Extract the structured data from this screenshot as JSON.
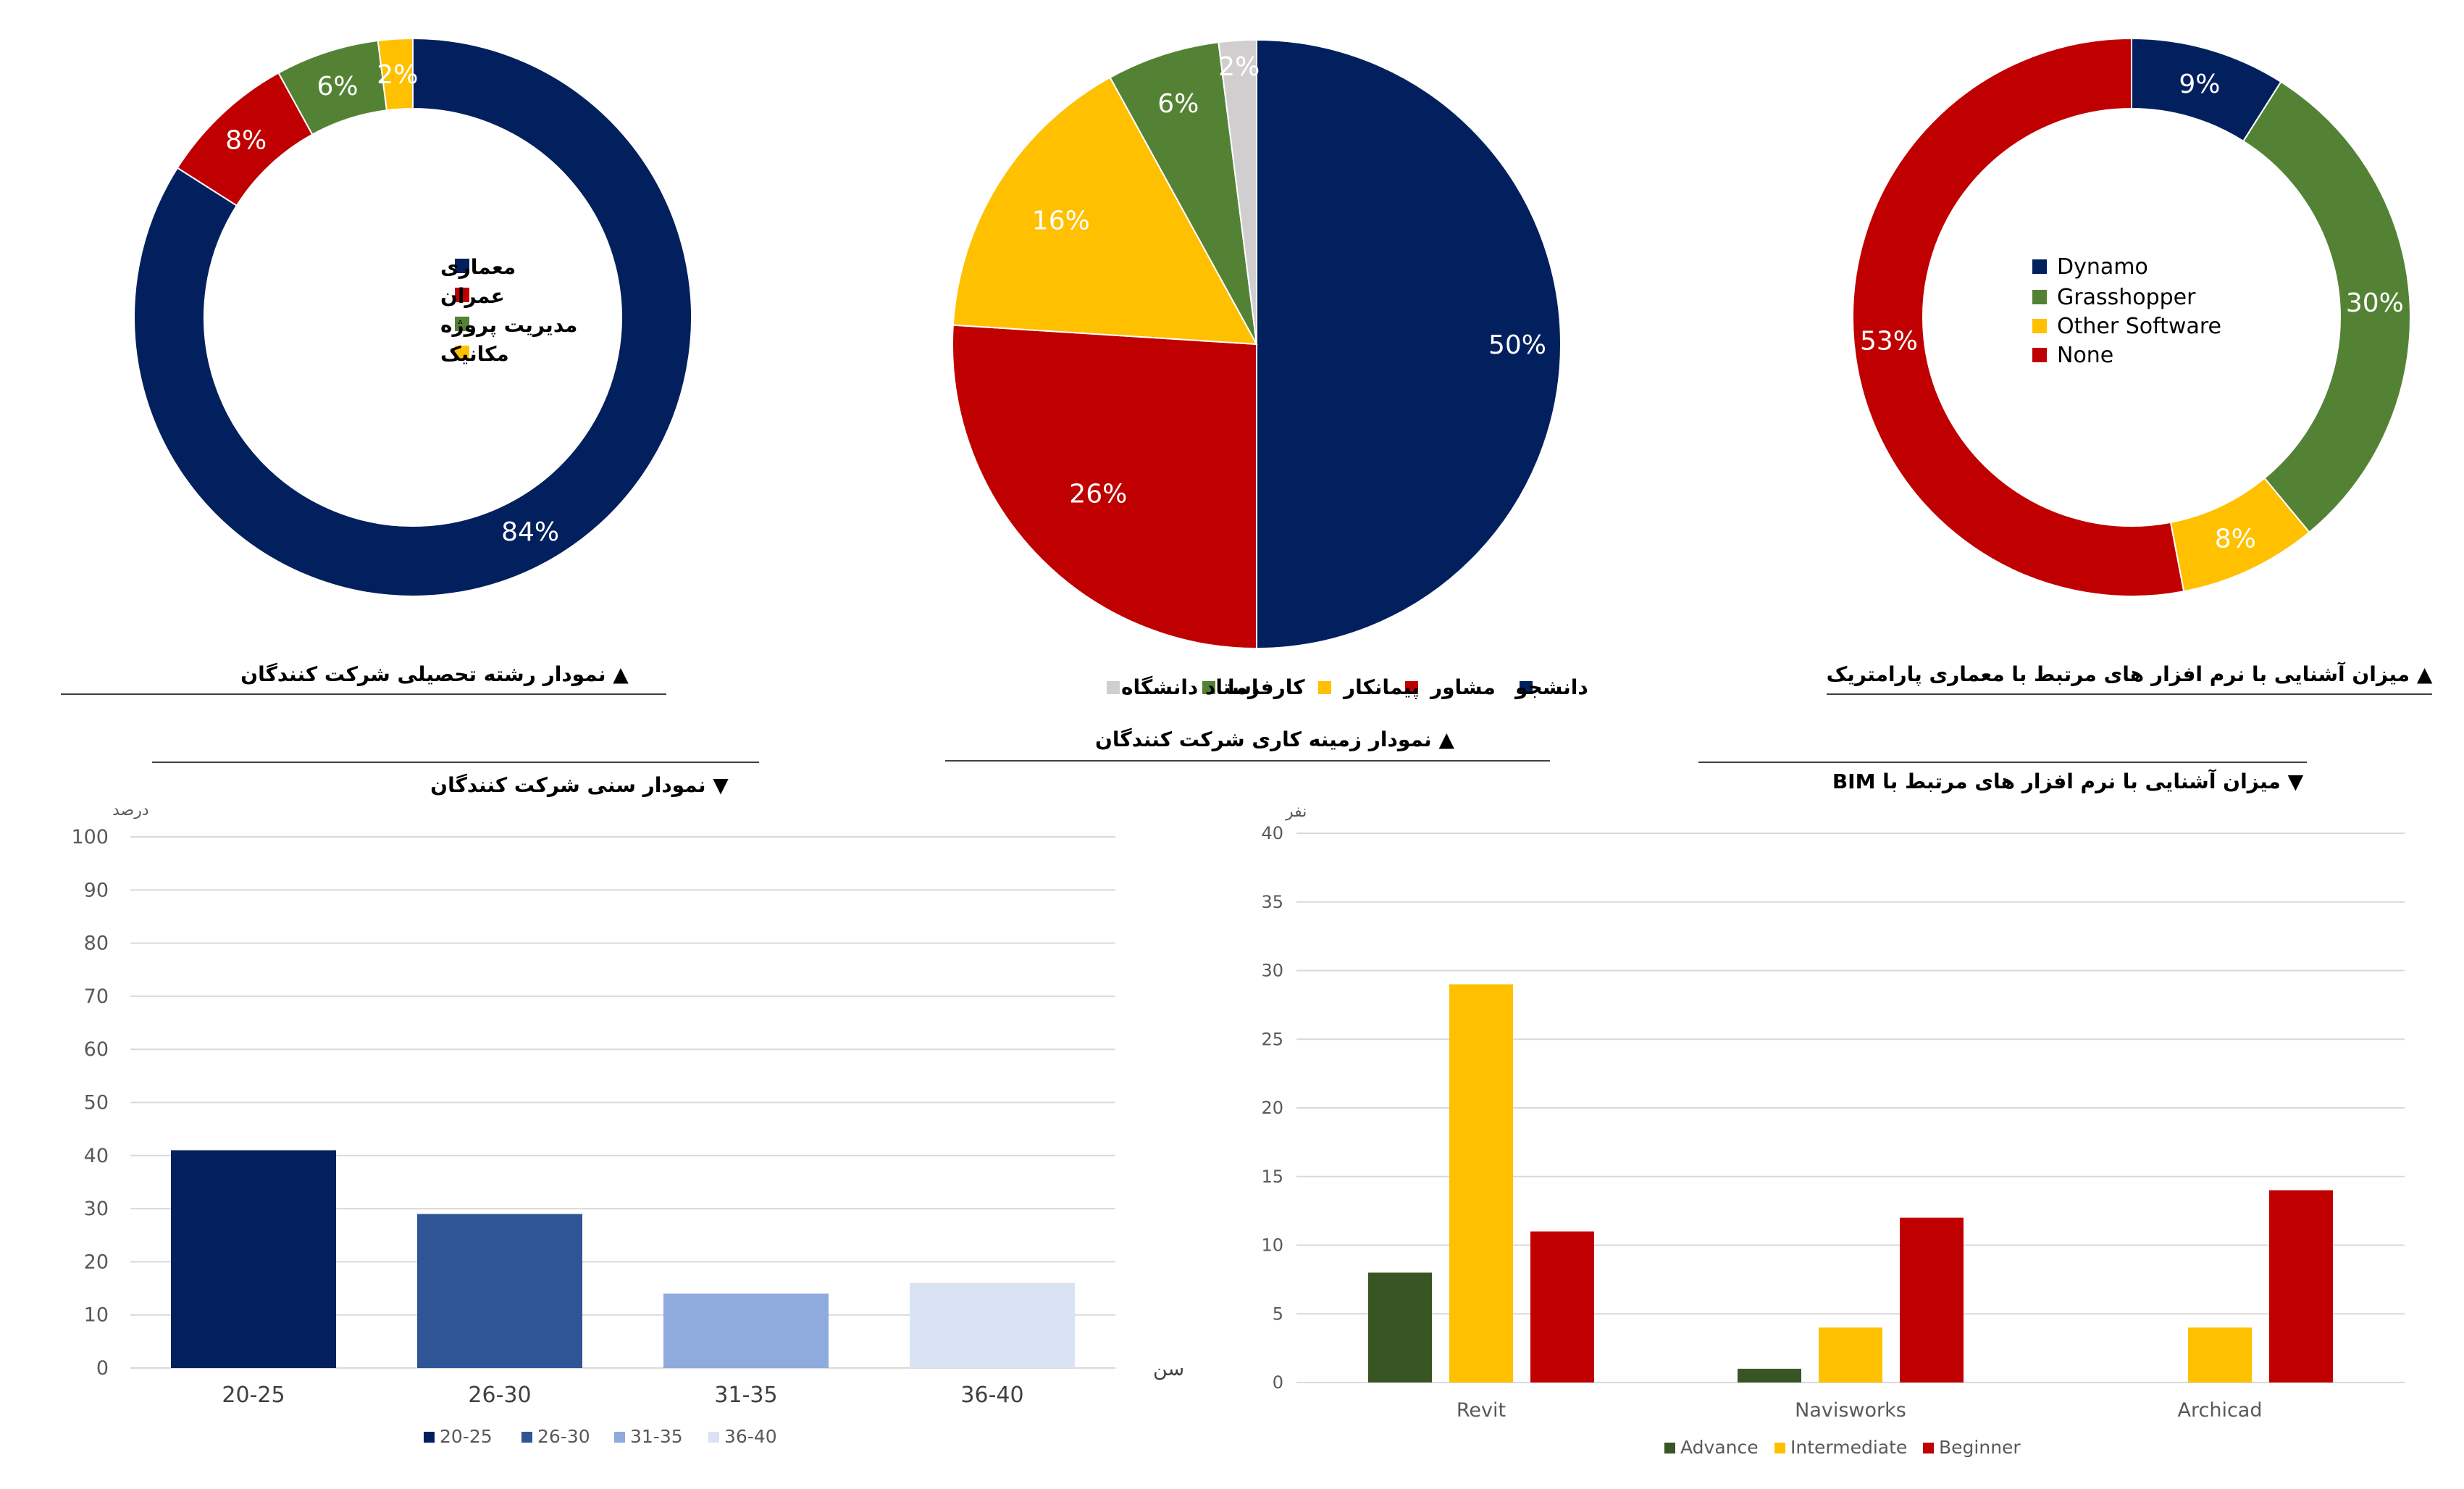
{
  "colors": {
    "navy": "#03205E",
    "red": "#C00000",
    "green": "#548235",
    "yellow": "#FFC000",
    "gray": "#D0CECE",
    "age1": "#03205E",
    "age2": "#2F5597",
    "age3": "#8FAADC",
    "age4": "#DAE3F3",
    "advance": "#375623",
    "intermediate": "#FFC000",
    "beginner": "#C00000",
    "grid": "#D9D9D9",
    "axis_text": "#595959"
  },
  "chart_data": [
    {
      "id": "field-of-study",
      "type": "pie",
      "donut": true,
      "title": "نمودار رشته تحصیلی شرکت کنندگان",
      "title_marker": "▲",
      "legend_position": "center",
      "slices": [
        {
          "label": "معماری",
          "value": 84,
          "display": "84%",
          "color": "#03205E"
        },
        {
          "label": "عمران",
          "value": 8,
          "display": "8%",
          "color": "#C00000"
        },
        {
          "label": "مدیریت پروژه",
          "value": 6,
          "display": "6%",
          "color": "#548235"
        },
        {
          "label": "مکانیک",
          "value": 2,
          "display": "2%",
          "color": "#FFC000"
        }
      ]
    },
    {
      "id": "work-field",
      "type": "pie",
      "donut": false,
      "title": "نمودار زمینه کاری شرکت کنندگان",
      "title_marker": "▲",
      "legend_position": "bottom",
      "slices": [
        {
          "label": "دانشجو",
          "value": 50,
          "display": "50%",
          "color": "#03205E"
        },
        {
          "label": "مشاور",
          "value": 26,
          "display": "26%",
          "color": "#C00000"
        },
        {
          "label": "پیمانکار",
          "value": 16,
          "display": "16%",
          "color": "#FFC000"
        },
        {
          "label": "کارفرما",
          "value": 6,
          "display": "6%",
          "color": "#548235"
        },
        {
          "label": "استاد دانشگاه",
          "value": 2,
          "display": "2%",
          "color": "#D0CECE"
        }
      ]
    },
    {
      "id": "parametric-software",
      "type": "pie",
      "donut": true,
      "title": "میزان آشنایی با نرم افزار های مرتبط با معماری پارامتریک",
      "title_marker": "▲",
      "legend_position": "center",
      "slices": [
        {
          "label": "Dynamo",
          "value": 9,
          "display": "9%",
          "color": "#03205E"
        },
        {
          "label": "Grasshopper",
          "value": 30,
          "display": "30%",
          "color": "#548235"
        },
        {
          "label": "Other Software",
          "value": 8,
          "display": "8%",
          "color": "#FFC000"
        },
        {
          "label": "None",
          "value": 53,
          "display": "53%",
          "color": "#C00000"
        }
      ]
    },
    {
      "id": "age-distribution",
      "type": "bar",
      "title": "نمودار سنی شرکت کنندگان",
      "title_marker": "▼",
      "ylabel": "درصد",
      "xlabel": "سن",
      "ylim": [
        0,
        100
      ],
      "ytick_step": 10,
      "yticks": [
        "0",
        "10",
        "20",
        "30",
        "40",
        "50",
        "60",
        "70",
        "80",
        "90",
        "100"
      ],
      "categories": [
        "20-25",
        "26-30",
        "31-35",
        "36-40"
      ],
      "values": [
        41,
        29,
        14,
        16
      ],
      "bar_colors": [
        "#03205E",
        "#2F5597",
        "#8FAADC",
        "#DAE3F3"
      ],
      "legend": [
        "20-25",
        "26-30",
        "31-35",
        "36-40"
      ],
      "legend_position": "bottom"
    },
    {
      "id": "bim-software",
      "type": "bar",
      "title": "میزان آشنایی با نرم افزار های مرتبط با BIM",
      "title_marker": "▼",
      "ylabel": "نفر",
      "xlabel": "",
      "ylim": [
        0,
        40
      ],
      "ytick_step": 5,
      "yticks": [
        "0",
        "5",
        "10",
        "15",
        "20",
        "25",
        "30",
        "35",
        "40"
      ],
      "categories": [
        "Revit",
        "Navisworks",
        "Archicad"
      ],
      "series": [
        {
          "name": "Advance",
          "values": [
            8,
            1,
            0
          ],
          "color": "#375623"
        },
        {
          "name": "Intermediate",
          "values": [
            29,
            4,
            4
          ],
          "color": "#FFC000"
        },
        {
          "name": "Beginner",
          "values": [
            11,
            12,
            14
          ],
          "color": "#C00000"
        }
      ],
      "legend_position": "bottom"
    }
  ]
}
